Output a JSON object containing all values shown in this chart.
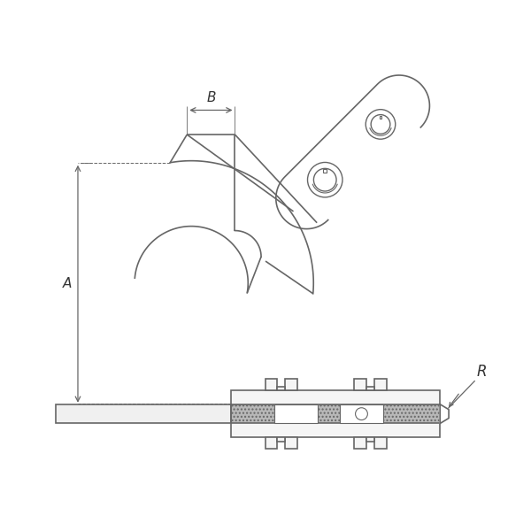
{
  "bg_color": "#ffffff",
  "line_color": "#666666",
  "label_A": "A",
  "label_B": "B",
  "label_R": "R",
  "fig_width": 6.0,
  "fig_height": 6.0,
  "dpi": 100
}
